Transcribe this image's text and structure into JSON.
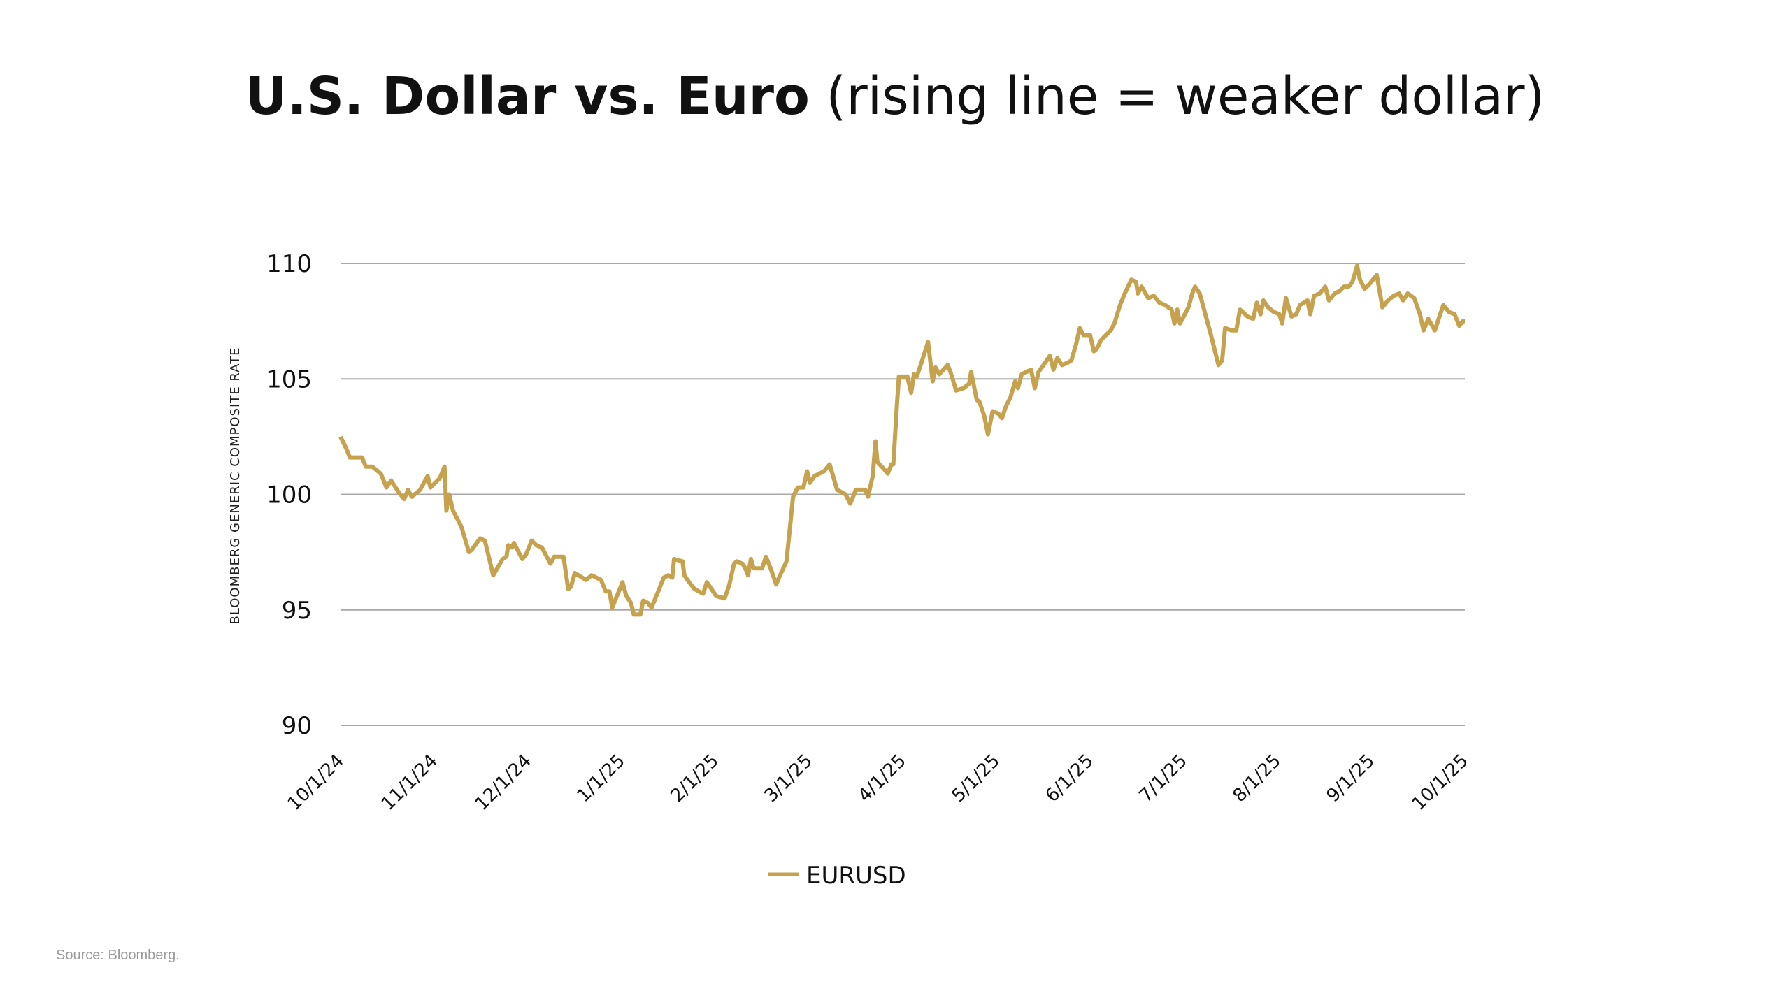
{
  "title": {
    "bold": "U.S. Dollar vs. Euro",
    "normal": " (rising line = weaker dollar)"
  },
  "source": "Source: Bloomberg.",
  "colors": {
    "line": "#C6A24E",
    "grid": "#a8a8a8",
    "text": "#111111"
  },
  "chart_data": {
    "type": "line",
    "title": "U.S. Dollar vs. Euro (rising line = weaker dollar)",
    "xlabel": "",
    "ylabel": "BLOOMBERG GENERIC COMPOSITE RATE",
    "x_units": "months since 10/1/24",
    "xlim": [
      0,
      12
    ],
    "ylim": [
      90,
      110
    ],
    "yticks": [
      90,
      95,
      100,
      105,
      110
    ],
    "ytick_labels": [
      "90",
      "95",
      "100",
      "105",
      "110"
    ],
    "xtick_labels": [
      "10/1/24",
      "11/1/24",
      "12/1/24",
      "1/1/25",
      "2/1/25",
      "3/1/25",
      "4/1/25",
      "5/1/25",
      "6/1/25",
      "7/1/25",
      "8/1/25",
      "9/1/25",
      "10/1/25"
    ],
    "grid": true,
    "legend": {
      "position": "bottom-center",
      "entries": [
        "EURUSD"
      ]
    },
    "series": [
      {
        "name": "EURUSD",
        "x": [
          0,
          0.06,
          0.1,
          0.23,
          0.27,
          0.34,
          0.43,
          0.49,
          0.54,
          0.62,
          0.68,
          0.72,
          0.76,
          0.85,
          0.93,
          0.96,
          1.06,
          1.11,
          1.13,
          1.16,
          1.2,
          1.29,
          1.37,
          1.4,
          1.49,
          1.54,
          1.63,
          1.73,
          1.77,
          1.79,
          1.83,
          1.85,
          1.94,
          1.98,
          2.04,
          2.09,
          2.15,
          2.24,
          2.28,
          2.38,
          2.43,
          2.46,
          2.5,
          2.62,
          2.68,
          2.78,
          2.83,
          2.87,
          2.9,
          3.01,
          3.05,
          3.1,
          3.13,
          3.2,
          3.23,
          3.28,
          3.32,
          3.45,
          3.5,
          3.54,
          3.56,
          3.65,
          3.67,
          3.72,
          3.78,
          3.87,
          3.91,
          3.96,
          4.01,
          4.1,
          4.15,
          4.2,
          4.23,
          4.29,
          4.32,
          4.35,
          4.38,
          4.41,
          4.5,
          4.54,
          4.59,
          4.65,
          4.68,
          4.76,
          4.83,
          4.88,
          4.94,
          4.98,
          5.01,
          5.06,
          5.16,
          5.22,
          5.3,
          5.39,
          5.44,
          5.5,
          5.6,
          5.63,
          5.68,
          5.71,
          5.73,
          5.8,
          5.84,
          5.88,
          5.9,
          5.94,
          5.96,
          6.05,
          6.09,
          6.12,
          6.15,
          6.2,
          6.27,
          6.32,
          6.35,
          6.39,
          6.48,
          6.51,
          6.57,
          6.65,
          6.71,
          6.73,
          6.79,
          6.82,
          6.87,
          6.91,
          6.96,
          7.02,
          7.06,
          7.1,
          7.15,
          7.2,
          7.23,
          7.27,
          7.37,
          7.41,
          7.45,
          7.52,
          7.57,
          7.61,
          7.65,
          7.7,
          7.76,
          7.8,
          7.85,
          7.89,
          7.93,
          8.0,
          8.04,
          8.07,
          8.12,
          8.22,
          8.26,
          8.32,
          8.37,
          8.44,
          8.49,
          8.51,
          8.55,
          8.62,
          8.68,
          8.74,
          8.8,
          8.87,
          8.9,
          8.93,
          8.96,
          9.05,
          9.09,
          9.12,
          9.17,
          9.23,
          9.29,
          9.37,
          9.41,
          9.44,
          9.51,
          9.56,
          9.6,
          9.63,
          9.68,
          9.74,
          9.78,
          9.82,
          9.85,
          9.9,
          9.96,
          10.02,
          10.05,
          10.09,
          10.15,
          10.2,
          10.24,
          10.32,
          10.35,
          10.39,
          10.45,
          10.51,
          10.55,
          10.61,
          10.66,
          10.71,
          10.76,
          10.8,
          10.85,
          10.88,
          10.93,
          10.98,
          11.06,
          11.12,
          11.18,
          11.24,
          11.3,
          11.34,
          11.39,
          11.46,
          11.52,
          11.56,
          11.61,
          11.68,
          11.77,
          11.83,
          11.89,
          11.94,
          11.98,
          12.0
        ],
        "y": [
          102.5,
          102.0,
          101.6,
          101.6,
          101.2,
          101.2,
          100.9,
          100.3,
          100.6,
          100.1,
          99.8,
          100.2,
          99.9,
          100.2,
          100.8,
          100.3,
          100.7,
          101.2,
          99.3,
          100.0,
          99.3,
          98.6,
          97.5,
          97.6,
          98.1,
          98.0,
          96.5,
          97.2,
          97.3,
          97.8,
          97.7,
          97.9,
          97.2,
          97.4,
          98.0,
          97.8,
          97.7,
          97.0,
          97.3,
          97.3,
          95.9,
          96.0,
          96.6,
          96.3,
          96.5,
          96.3,
          95.8,
          95.8,
          95.1,
          96.2,
          95.6,
          95.3,
          94.8,
          94.8,
          95.4,
          95.3,
          95.1,
          96.4,
          96.5,
          96.4,
          97.2,
          97.1,
          96.5,
          96.2,
          95.9,
          95.7,
          96.2,
          95.9,
          95.6,
          95.5,
          96.1,
          97.0,
          97.1,
          97.0,
          96.8,
          96.5,
          97.2,
          96.8,
          96.8,
          97.3,
          96.8,
          96.1,
          96.4,
          97.1,
          99.9,
          100.3,
          100.3,
          101.0,
          100.5,
          100.8,
          101.0,
          101.3,
          100.2,
          100.0,
          99.6,
          100.2,
          100.2,
          99.9,
          100.8,
          102.3,
          101.4,
          101.1,
          100.9,
          101.3,
          101.3,
          104.0,
          105.1,
          105.1,
          104.4,
          105.2,
          105.1,
          105.7,
          106.6,
          104.9,
          105.5,
          105.2,
          105.6,
          105.3,
          104.5,
          104.6,
          104.8,
          105.3,
          104.1,
          104.0,
          103.4,
          102.6,
          103.6,
          103.5,
          103.3,
          103.8,
          104.2,
          104.9,
          104.6,
          105.2,
          105.4,
          104.6,
          105.3,
          105.7,
          106.0,
          105.4,
          105.9,
          105.6,
          105.7,
          105.8,
          106.5,
          107.2,
          106.9,
          106.9,
          106.2,
          106.3,
          106.7,
          107.1,
          107.4,
          108.2,
          108.7,
          109.3,
          109.2,
          108.7,
          109.0,
          108.5,
          108.6,
          108.3,
          108.2,
          108.0,
          107.4,
          108.0,
          107.4,
          108.1,
          108.7,
          109.0,
          108.7,
          107.8,
          106.9,
          105.6,
          105.8,
          107.2,
          107.1,
          107.1,
          108.0,
          107.9,
          107.7,
          107.6,
          108.3,
          107.8,
          108.4,
          108.1,
          107.9,
          107.8,
          107.4,
          108.5,
          107.7,
          107.8,
          108.2,
          108.4,
          107.8,
          108.6,
          108.7,
          109.0,
          108.4,
          108.7,
          108.8,
          109.0,
          109.0,
          109.2,
          109.9,
          109.3,
          108.9,
          109.1,
          109.5,
          108.1,
          108.4,
          108.6,
          108.7,
          108.4,
          108.7,
          108.5,
          107.8,
          107.1,
          107.6,
          107.1,
          108.2,
          107.9,
          107.8,
          107.3,
          107.5,
          107.5
        ]
      }
    ]
  }
}
